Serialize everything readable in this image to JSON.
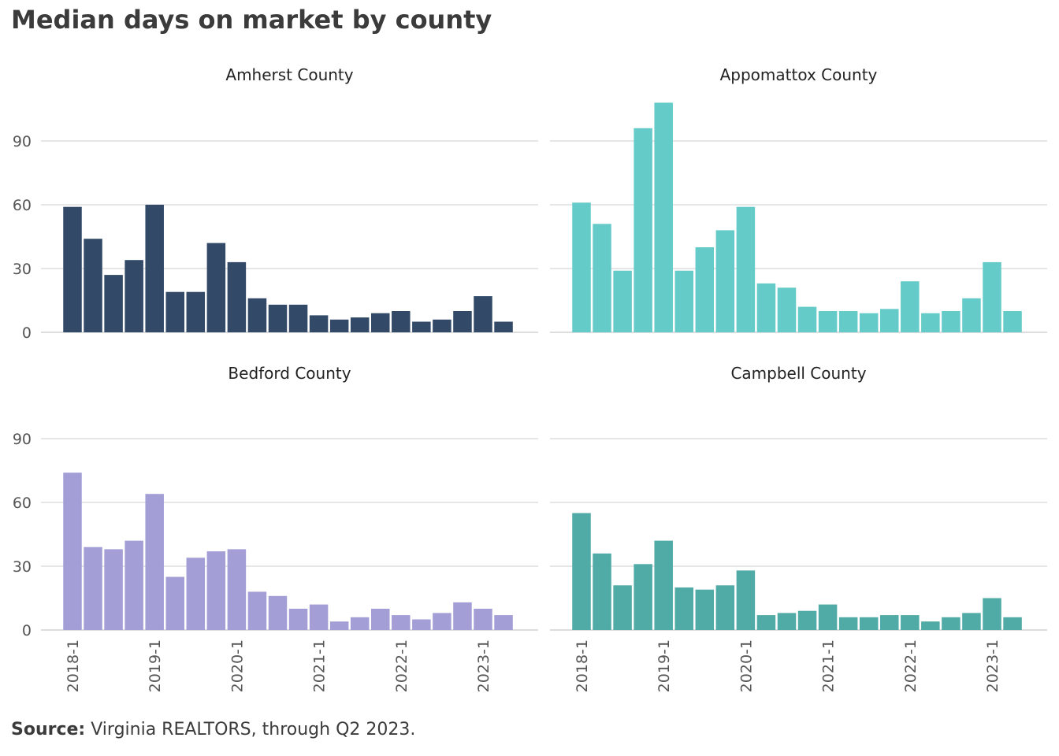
{
  "title": "Median days on market by county",
  "source": {
    "label": "Source:",
    "text": "Virginia REALTORS,  through  Q2 2023."
  },
  "chart_data": {
    "type": "bar",
    "layout": "2x2 small multiples, shared y-axis",
    "ylim": [
      0,
      110
    ],
    "yticks": [
      0,
      30,
      60,
      90
    ],
    "grid": true,
    "quarters": [
      "2018-1",
      "2018-2",
      "2018-3",
      "2018-4",
      "2019-1",
      "2019-2",
      "2019-3",
      "2019-4",
      "2020-1",
      "2020-2",
      "2020-3",
      "2020-4",
      "2021-1",
      "2021-2",
      "2021-3",
      "2021-4",
      "2022-1",
      "2022-2",
      "2022-3",
      "2022-4",
      "2023-1",
      "2023-2"
    ],
    "xtick_labels": [
      "2018-1",
      "2019-1",
      "2020-1",
      "2021-1",
      "2022-1",
      "2023-1"
    ],
    "series": [
      {
        "name": "Amherst County",
        "color": "#324a67",
        "values": [
          59,
          44,
          27,
          34,
          60,
          19,
          19,
          42,
          33,
          16,
          13,
          13,
          8,
          6,
          7,
          9,
          10,
          5,
          6,
          10,
          17,
          5
        ]
      },
      {
        "name": "Appomattox County",
        "color": "#65cbc8",
        "values": [
          61,
          51,
          29,
          96,
          108,
          29,
          40,
          48,
          59,
          23,
          21,
          12,
          10,
          10,
          9,
          11,
          24,
          9,
          10,
          16,
          33,
          10
        ]
      },
      {
        "name": "Bedford County",
        "color": "#a39fd6",
        "values": [
          74,
          39,
          38,
          42,
          64,
          25,
          34,
          37,
          38,
          18,
          16,
          10,
          12,
          4,
          6,
          10,
          7,
          5,
          8,
          13,
          10,
          7
        ]
      },
      {
        "name": "Campbell County",
        "color": "#50aaa5",
        "values": [
          55,
          36,
          21,
          31,
          42,
          20,
          19,
          21,
          28,
          7,
          8,
          9,
          12,
          6,
          6,
          7,
          7,
          4,
          6,
          8,
          15,
          6
        ]
      }
    ]
  }
}
